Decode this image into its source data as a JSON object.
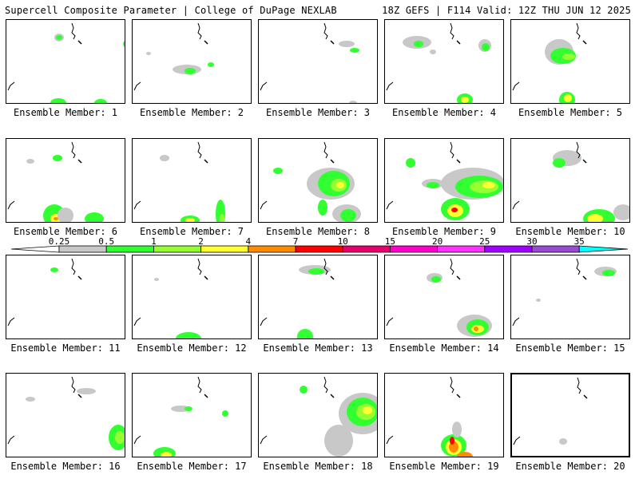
{
  "header": {
    "title_left": "Supercell Composite Parameter | College of DuPage NEXLAB",
    "title_right": "18Z GEFS | F114 Valid: 12Z THU JUN 12 2025"
  },
  "members": [
    "Ensemble Member: 1",
    "Ensemble Member: 2",
    "Ensemble Member: 3",
    "Ensemble Member: 4",
    "Ensemble Member: 5",
    "Ensemble Member: 6",
    "Ensemble Member: 7",
    "Ensemble Member: 8",
    "Ensemble Member: 9",
    "Ensemble Member: 10",
    "Ensemble Member: 11",
    "Ensemble Member: 12",
    "Ensemble Member: 13",
    "Ensemble Member: 14",
    "Ensemble Member: 15",
    "Ensemble Member: 16",
    "Ensemble Member: 17",
    "Ensemble Member: 18",
    "Ensemble Member: 19",
    "Ensemble Member: 20"
  ],
  "colorbar": {
    "levels": [
      "0.25",
      "0.5",
      "1",
      "2",
      "4",
      "7",
      "10",
      "15",
      "20",
      "25",
      "30",
      "35"
    ],
    "colors": [
      "#c8c8c8",
      "#32ff32",
      "#96ff32",
      "#ffff32",
      "#ff8c00",
      "#ff0000",
      "#e6006e",
      "#ff00c8",
      "#ff32ff",
      "#a000ff",
      "#9b4bd2",
      "#00ffff"
    ],
    "extend_left_color": "#ffffff",
    "extend_right_color": "#00ffff"
  }
}
